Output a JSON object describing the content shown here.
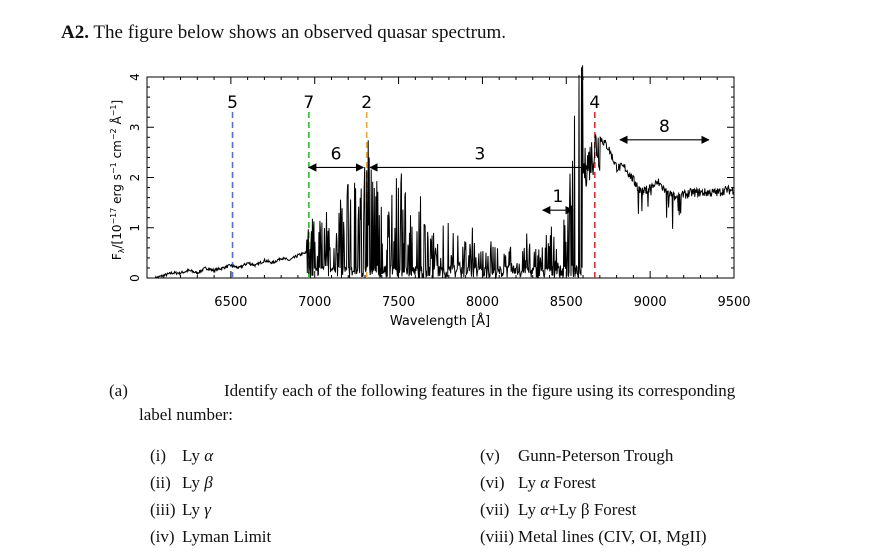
{
  "question": {
    "number": "A2.",
    "text": "The figure below shows an observed quasar spectrum."
  },
  "figure": {
    "ylabel_parts": [
      "F",
      "λ",
      "/[10",
      "−17",
      " erg s",
      "−1",
      " cm",
      "−2",
      " Å",
      "−1",
      "]"
    ],
    "xlabel": "Wavelength [Å]",
    "xticks": [
      "6500",
      "7000",
      "7500",
      "8000",
      "8500",
      "9000",
      "9500"
    ],
    "yticks": [
      "0",
      "1",
      "2",
      "3",
      "4"
    ],
    "markers": [
      "5",
      "7",
      "2",
      "4"
    ],
    "arrow_labels": [
      "6",
      "3",
      "1",
      "8"
    ],
    "line_colors": {
      "5": "#4f6ef7",
      "7": "#22c322",
      "2": "#f5a623",
      "4": "#e8282b"
    },
    "spectrum_color": "#000000"
  },
  "chart_data": {
    "type": "line",
    "xlabel": "Wavelength [Å]",
    "ylabel": "Fλ/[10⁻¹⁷ erg s⁻¹ cm⁻² Å⁻¹]",
    "xlim": [
      6000,
      9500
    ],
    "ylim": [
      0,
      4
    ],
    "vertical_lines": [
      {
        "label": "5",
        "x": 6510,
        "color": "#4f6ef7"
      },
      {
        "label": "7",
        "x": 6965,
        "color": "#22c322"
      },
      {
        "label": "2",
        "x": 7310,
        "color": "#f5a623"
      },
      {
        "label": "4",
        "x": 8670,
        "color": "#e8282b"
      }
    ],
    "arrows": [
      {
        "label": "6",
        "x": [
          6965,
          7290
        ],
        "y": 2.2
      },
      {
        "label": "3",
        "x": [
          7330,
          8640
        ],
        "y": 2.2
      },
      {
        "label": "1",
        "x": [
          8360,
          8540
        ],
        "y": 1.35
      },
      {
        "label": "8",
        "x": [
          8820,
          9350
        ],
        "y": 2.75
      }
    ],
    "series": [
      {
        "x": [
          6050,
          6100,
          6150,
          6200,
          6250,
          6300,
          6350,
          6400,
          6450,
          6500,
          6550,
          6600,
          6650,
          6700,
          6750,
          6800,
          6850,
          6900,
          6950,
          7000,
          7050,
          7100,
          7150,
          7200,
          7250,
          7300,
          7350,
          7400,
          7450,
          7500,
          7550,
          7600,
          7650,
          7700,
          7750,
          7800,
          7850,
          7900,
          7950,
          8000,
          8050,
          8100,
          8150,
          8200,
          8250,
          8300,
          8350,
          8400,
          8450,
          8500,
          8550,
          8600,
          8650,
          8680,
          8700,
          8750,
          8800,
          8850,
          8900,
          8950,
          9000,
          9050,
          9100,
          9150,
          9200,
          9250,
          9300,
          9350,
          9400,
          9450,
          9500
        ],
        "values": [
          0.0,
          0.05,
          0.1,
          0.1,
          0.15,
          0.1,
          0.2,
          0.15,
          0.2,
          0.25,
          0.2,
          0.3,
          0.25,
          0.35,
          0.3,
          0.4,
          0.35,
          0.45,
          0.5,
          0.7,
          0.6,
          0.9,
          0.8,
          1.1,
          1.3,
          1.6,
          1.2,
          1.0,
          0.8,
          1.2,
          0.9,
          0.7,
          1.0,
          0.6,
          0.5,
          0.7,
          0.5,
          0.4,
          0.6,
          0.3,
          0.4,
          0.3,
          0.35,
          0.3,
          0.5,
          0.4,
          0.3,
          0.6,
          0.5,
          0.7,
          2.0,
          2.3,
          2.6,
          2.9,
          2.8,
          2.6,
          2.2,
          2.2,
          1.95,
          1.7,
          1.8,
          1.9,
          1.7,
          1.6,
          1.65,
          1.7,
          1.7,
          1.7,
          1.7,
          1.75,
          1.75
        ]
      }
    ]
  },
  "part_a": {
    "label": "(a)",
    "text1": "Identify each of the following features in the figure using its corresponding",
    "text2": "label number:"
  },
  "options_left": [
    {
      "num": "(i)",
      "pre": "Ly ",
      "sym": "α",
      "post": ""
    },
    {
      "num": "(ii)",
      "pre": "Ly ",
      "sym": "β",
      "post": ""
    },
    {
      "num": "(iii)",
      "pre": "Ly ",
      "sym": "γ",
      "post": ""
    },
    {
      "num": "(iv)",
      "pre": "Lyman Limit",
      "sym": "",
      "post": ""
    }
  ],
  "options_right": [
    {
      "num": "(v)",
      "pre": "Gunn-Peterson Trough",
      "sym": "",
      "post": ""
    },
    {
      "num": "(vi)",
      "pre": "Ly ",
      "sym": "α",
      "post": " Forest"
    },
    {
      "num": "(vii)",
      "pre": "Ly ",
      "sym": "α",
      "post": "+Ly β Forest"
    },
    {
      "num": "(viii)",
      "pre": "Metal lines (CIV, OI, MgII)",
      "sym": "",
      "post": ""
    }
  ]
}
